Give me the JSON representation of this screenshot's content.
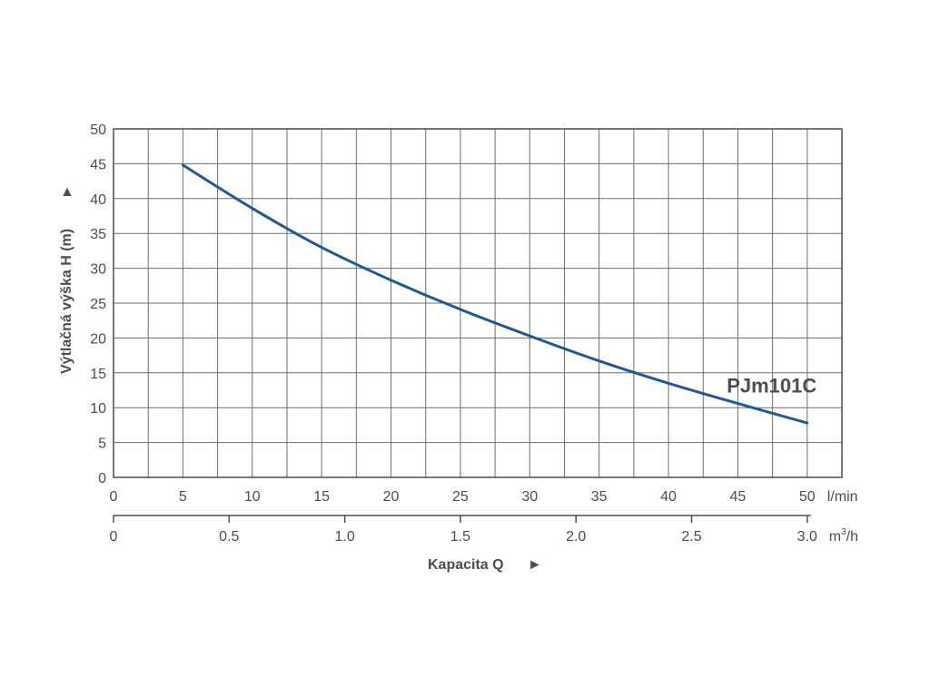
{
  "chart_data": {
    "type": "line",
    "x": [
      5,
      10,
      15,
      20,
      25,
      30,
      35,
      40,
      45,
      50
    ],
    "series": [
      {
        "name": "PJm101C",
        "values": [
          44.8,
          38.6,
          33.0,
          28.3,
          24.1,
          20.3,
          16.7,
          13.5,
          10.6,
          7.8
        ],
        "color": "#1f5a96"
      }
    ],
    "xlim": [
      0,
      52.5
    ],
    "ylim": [
      0,
      50
    ],
    "x_ticks": [
      "0",
      "5",
      "10",
      "15",
      "20",
      "25",
      "30",
      "35",
      "40",
      "45",
      "50"
    ],
    "x_tick_values": [
      0,
      5,
      10,
      15,
      20,
      25,
      30,
      35,
      40,
      45,
      50
    ],
    "x_unit": "l/min",
    "x2_ticks": [
      "0",
      "0.5",
      "1.0",
      "1.5",
      "2.0",
      "2.5",
      "3.0"
    ],
    "x2_tick_values": [
      0,
      0.5,
      1.0,
      1.5,
      2.0,
      2.5,
      3.0
    ],
    "x2_unit_base": "m",
    "x2_unit_sup": "3",
    "x2_unit_tail": "/h",
    "y_ticks": [
      "0",
      "5",
      "10",
      "15",
      "20",
      "25",
      "30",
      "35",
      "40",
      "45",
      "50"
    ],
    "y_tick_values": [
      0,
      5,
      10,
      15,
      20,
      25,
      30,
      35,
      40,
      45,
      50
    ],
    "xlabel": "Kapacita Q",
    "ylabel": "Výtlačná výška H (m)",
    "arrow_right": "►",
    "arrow_up": "▲",
    "grid": true,
    "grid_x_step": 2.5,
    "grid_y_step": 5,
    "line_color": "#1f5a96"
  }
}
